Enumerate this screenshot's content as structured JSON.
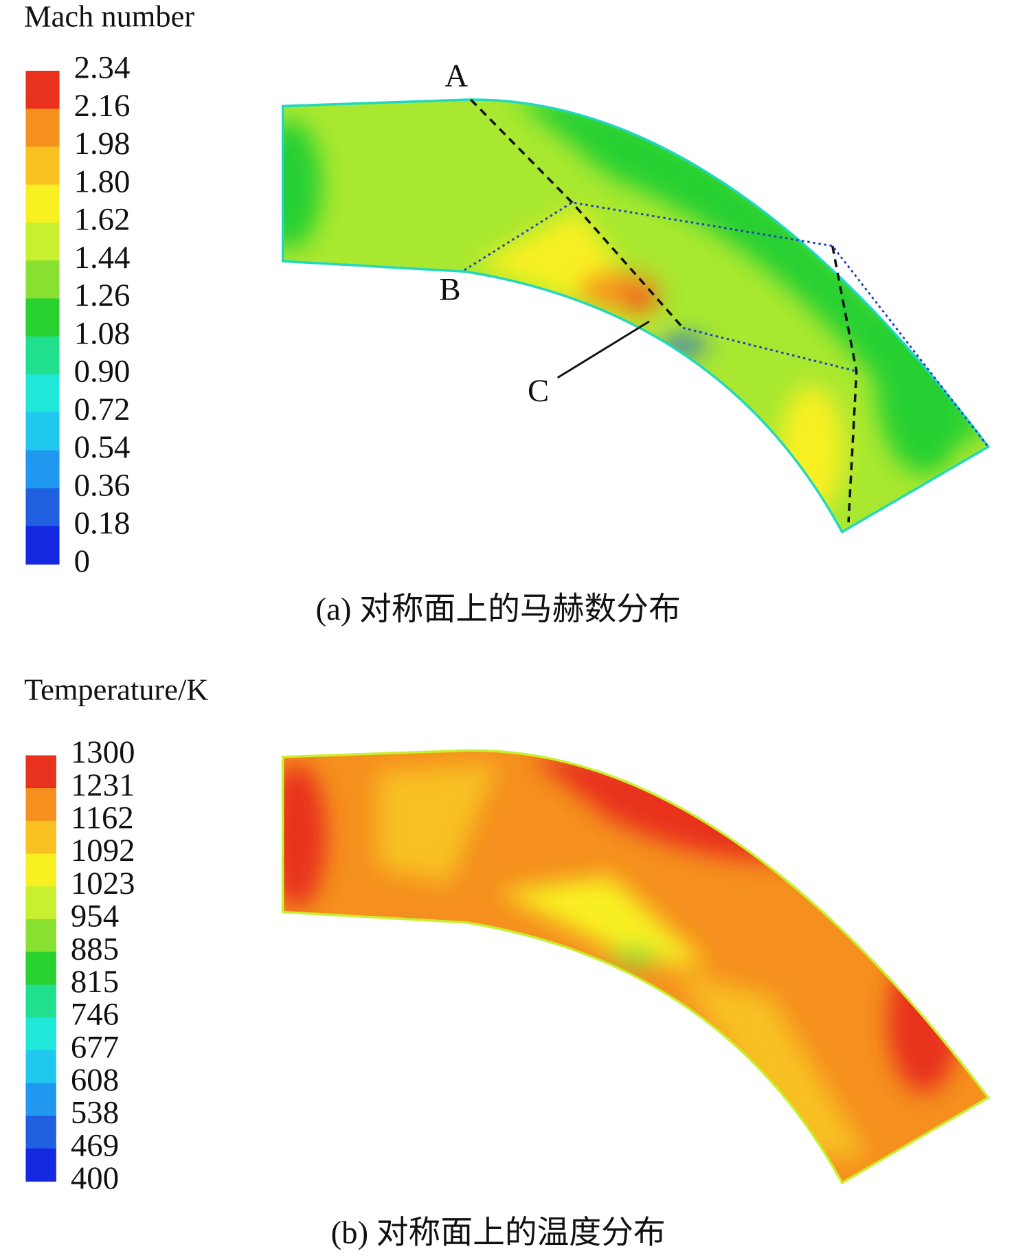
{
  "panels": [
    {
      "legend_title": "Mach number",
      "legend_labels": [
        "2.34",
        "2.16",
        "1.98",
        "1.80",
        "1.62",
        "1.44",
        "1.26",
        "1.08",
        "0.90",
        "0.72",
        "0.54",
        "0.36",
        "0.18",
        "0"
      ],
      "annotations": [
        "A",
        "B",
        "C"
      ],
      "caption": "(a) 对称面上的马赫数分布"
    },
    {
      "legend_title": "Temperature/K",
      "legend_labels": [
        "1300",
        "1231",
        "1162",
        "1092",
        "1023",
        "954",
        "885",
        "815",
        "746",
        "677",
        "608",
        "538",
        "469",
        "400"
      ],
      "caption": "(b) 对称面上的温度分布"
    }
  ]
}
